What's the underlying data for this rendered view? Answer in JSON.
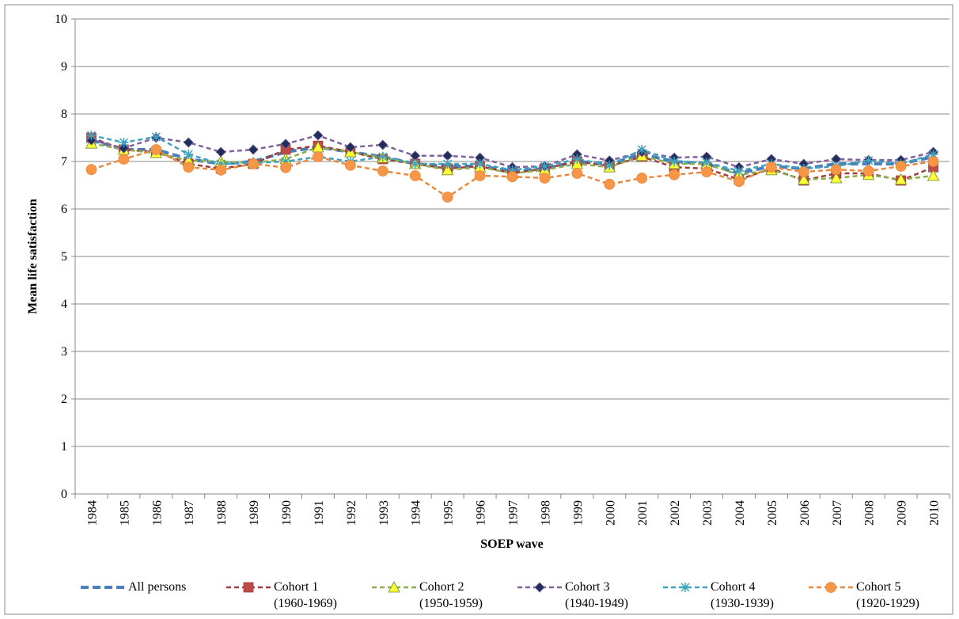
{
  "chart_data": {
    "type": "line",
    "y_label": "Mean life satisfaction",
    "x_label": "SOEP wave",
    "categories": [
      "1984",
      "1985",
      "1986",
      "1987",
      "1988",
      "1989",
      "1990",
      "1991",
      "1992",
      "1993",
      "1994",
      "1995",
      "1996",
      "1997",
      "1998",
      "1999",
      "2000",
      "2001",
      "2002",
      "2003",
      "2004",
      "2005",
      "2006",
      "2007",
      "2008",
      "2009",
      "2010"
    ],
    "ylim": [
      0,
      10
    ],
    "yticks": [
      0,
      1,
      2,
      3,
      4,
      5,
      6,
      7,
      8,
      9,
      10
    ],
    "grid": true,
    "legend": "bottom",
    "series": [
      {
        "name": "All persons",
        "color": "#4a7ebb",
        "marker": "none",
        "marker_color": "#4a7ebb",
        "values": [
          7.45,
          7.25,
          7.25,
          7.05,
          6.95,
          7.0,
          7.2,
          7.3,
          7.2,
          7.1,
          6.95,
          6.9,
          6.9,
          6.8,
          6.85,
          7.0,
          6.95,
          7.15,
          7.0,
          6.95,
          6.75,
          6.9,
          6.85,
          6.95,
          6.95,
          6.95,
          7.1
        ]
      },
      {
        "name": "Cohort 1 (1960-1969)",
        "color": "#a33b38",
        "marker": "square",
        "marker_color": "#be4b48",
        "values": [
          7.5,
          7.25,
          7.2,
          6.95,
          6.85,
          6.95,
          7.25,
          7.33,
          7.2,
          7.05,
          6.95,
          6.85,
          6.9,
          6.75,
          6.85,
          7.0,
          6.9,
          7.1,
          6.88,
          6.85,
          6.62,
          6.85,
          6.6,
          6.75,
          6.75,
          6.6,
          6.88
        ]
      },
      {
        "name": "Cohort 2 (1950-1959)",
        "color": "#8cae48",
        "marker": "triangle",
        "marker_color": "#ffff33",
        "values": [
          7.38,
          7.25,
          7.18,
          7.02,
          7.0,
          6.97,
          7.05,
          7.3,
          7.2,
          7.08,
          6.95,
          6.82,
          6.88,
          6.75,
          6.82,
          6.95,
          6.88,
          7.12,
          6.95,
          6.95,
          6.72,
          6.82,
          6.62,
          6.65,
          6.72,
          6.62,
          6.7
        ]
      },
      {
        "name": "Cohort 3 (1940-1949)",
        "color": "#7e62a0",
        "marker": "diamond",
        "marker_color": "#1f2f5a",
        "values": [
          7.45,
          7.28,
          7.5,
          7.4,
          7.2,
          7.25,
          7.37,
          7.55,
          7.3,
          7.35,
          7.12,
          7.12,
          7.08,
          6.88,
          6.9,
          7.15,
          7.02,
          7.2,
          7.08,
          7.1,
          6.88,
          7.05,
          6.95,
          7.05,
          7.03,
          7.03,
          7.2
        ]
      },
      {
        "name": "Cohort 4 (1930-1939)",
        "color": "#3fa2be",
        "marker": "star",
        "marker_color": "#3fa2be",
        "values": [
          7.55,
          7.4,
          7.52,
          7.15,
          6.95,
          6.97,
          7.0,
          7.1,
          7.0,
          7.1,
          6.95,
          6.95,
          6.95,
          6.82,
          6.9,
          7.05,
          6.92,
          7.25,
          7.0,
          6.98,
          6.8,
          6.95,
          6.85,
          6.9,
          7.02,
          6.95,
          7.15
        ]
      },
      {
        "name": "Cohort 5 (1920-1929)",
        "color": "#e8883d",
        "marker": "circle",
        "marker_color": "#f79646",
        "values": [
          6.83,
          7.05,
          7.25,
          6.88,
          6.82,
          6.95,
          6.87,
          7.1,
          6.92,
          6.8,
          6.7,
          6.25,
          6.7,
          6.68,
          6.65,
          6.75,
          6.52,
          6.65,
          6.72,
          6.78,
          6.58,
          6.88,
          6.78,
          6.83,
          6.8,
          6.9,
          7.0
        ]
      }
    ]
  }
}
